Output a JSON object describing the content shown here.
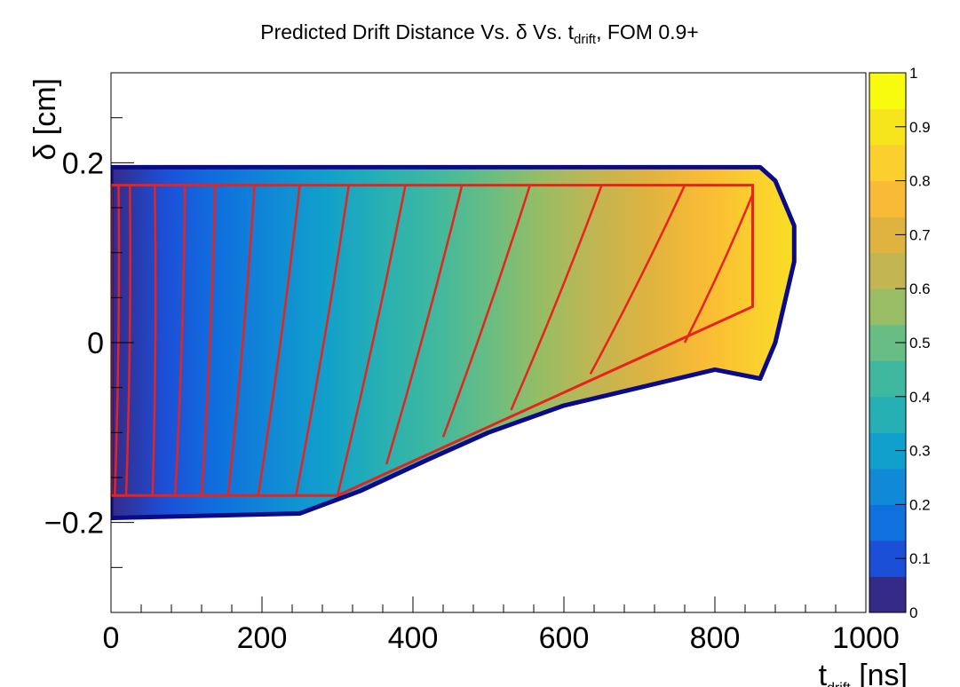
{
  "chart_data": {
    "type": "heatmap",
    "title": "Predicted Drift Distance Vs. δ Vs. t",
    "title_subscript": "drift",
    "title_suffix": ", FOM 0.9+",
    "xlabel": "t",
    "xlabel_subscript": "drift",
    "xlabel_unit": " [ns]",
    "ylabel": "δ [cm]",
    "xlim": [
      0,
      1000
    ],
    "ylim": [
      -0.3,
      0.3
    ],
    "x_ticks": [
      {
        "value": 0,
        "label": "0"
      },
      {
        "value": 200,
        "label": "200"
      },
      {
        "value": 400,
        "label": "400"
      },
      {
        "value": 600,
        "label": "600"
      },
      {
        "value": 800,
        "label": "800"
      },
      {
        "value": 1000,
        "label": "1000"
      }
    ],
    "y_ticks": [
      {
        "value": -0.2,
        "label": "−0.2"
      },
      {
        "value": 0,
        "label": "0"
      },
      {
        "value": 0.2,
        "label": "0.2"
      }
    ],
    "colorbar": {
      "range": [
        0,
        1
      ],
      "ticks": [
        "0",
        "0.1",
        "0.2",
        "0.3",
        "0.4",
        "0.5",
        "0.6",
        "0.7",
        "0.8",
        "0.9",
        "1"
      ],
      "colors": [
        "#352a87",
        "#1c4fd8",
        "#0f70de",
        "#1089d6",
        "#11a0cb",
        "#27b0b3",
        "#3fb89f",
        "#67bd83",
        "#98bd64",
        "#c2b552",
        "#dfb33f",
        "#f9bb35",
        "#fbd02e",
        "#f6e51d",
        "#f9fb0e"
      ]
    },
    "region": {
      "description_free": true,
      "outline": [
        [
          0,
          0.175
        ],
        [
          850,
          0.175
        ],
        [
          850,
          0.04
        ],
        [
          300,
          -0.17
        ],
        [
          0,
          -0.17
        ]
      ],
      "top_edge": [
        [
          0,
          0.195
        ],
        [
          860,
          0.195
        ]
      ],
      "upper_right": [
        [
          860,
          0.195
        ],
        [
          880,
          0.18
        ],
        [
          905,
          0.13
        ],
        [
          905,
          0.09
        ],
        [
          880,
          0.0
        ],
        [
          860,
          -0.04
        ]
      ],
      "lower_edge": [
        [
          0,
          -0.195
        ],
        [
          250,
          -0.19
        ],
        [
          330,
          -0.165
        ],
        [
          420,
          -0.13
        ],
        [
          500,
          -0.1
        ],
        [
          600,
          -0.07
        ],
        [
          700,
          -0.05
        ],
        [
          800,
          -0.03
        ],
        [
          860,
          -0.04
        ]
      ]
    },
    "contours": [
      {
        "value": 0.02,
        "top": [
          10,
          0.175
        ],
        "bottom": [
          5,
          -0.17
        ]
      },
      {
        "value": 0.04,
        "top": [
          25,
          0.175
        ],
        "bottom": [
          20,
          -0.17
        ]
      },
      {
        "value": 0.06,
        "top": [
          58,
          0.175
        ],
        "bottom": [
          55,
          -0.17
        ]
      },
      {
        "value": 0.1,
        "top": [
          98,
          0.175
        ],
        "bottom": [
          85,
          -0.17
        ]
      },
      {
        "value": 0.14,
        "top": [
          138,
          0.175
        ],
        "bottom": [
          120,
          -0.17
        ]
      },
      {
        "value": 0.18,
        "top": [
          190,
          0.175
        ],
        "bottom": [
          155,
          -0.17
        ]
      },
      {
        "value": 0.24,
        "top": [
          250,
          0.175
        ],
        "bottom": [
          195,
          -0.17
        ]
      },
      {
        "value": 0.3,
        "top": [
          315,
          0.175
        ],
        "bottom": [
          245,
          -0.17
        ]
      },
      {
        "value": 0.38,
        "top": [
          390,
          0.175
        ],
        "bottom": [
          300,
          -0.17
        ]
      },
      {
        "value": 0.46,
        "top": [
          465,
          0.175
        ],
        "bottom": [
          365,
          -0.135
        ]
      },
      {
        "value": 0.55,
        "top": [
          555,
          0.175
        ],
        "bottom": [
          440,
          -0.105
        ]
      },
      {
        "value": 0.64,
        "top": [
          650,
          0.175
        ],
        "bottom": [
          530,
          -0.075
        ]
      },
      {
        "value": 0.75,
        "top": [
          760,
          0.175
        ],
        "bottom": [
          635,
          -0.035
        ]
      },
      {
        "value": 0.86,
        "top": [
          850,
          0.165
        ],
        "bottom": [
          760,
          0.0
        ]
      }
    ],
    "grid": false,
    "legend": "none"
  }
}
